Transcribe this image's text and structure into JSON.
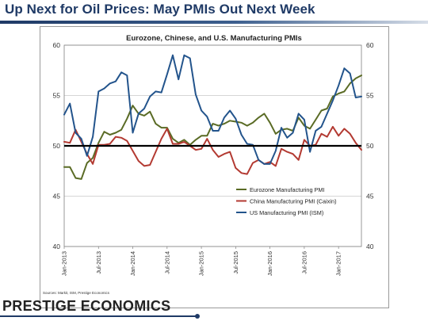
{
  "slide": {
    "title": "Up Next for Oil Prices: May PMIs Out Next Week",
    "sources": "Sources: Markit, ISM, Prestige Economics",
    "brand": "PRESTIGE ECONOMICS"
  },
  "chart_data": {
    "type": "line",
    "title": "Eurozone, Chinese, and U.S. Manufacturing PMIs",
    "xlabel": "",
    "ylabel": "",
    "ylim": [
      40,
      60
    ],
    "yticks": [
      40,
      45,
      50,
      55,
      60
    ],
    "y_tick_labels": [
      "40",
      "45",
      "50",
      "55",
      "60"
    ],
    "secondary_yticks": [
      40,
      45,
      50,
      55,
      60
    ],
    "secondary_y_tick_labels": [
      "40",
      "45",
      "50",
      "55",
      "60"
    ],
    "x": [
      "2013-01",
      "2013-02",
      "2013-03",
      "2013-04",
      "2013-05",
      "2013-06",
      "2013-07",
      "2013-08",
      "2013-09",
      "2013-10",
      "2013-11",
      "2013-12",
      "2014-01",
      "2014-02",
      "2014-03",
      "2014-04",
      "2014-05",
      "2014-06",
      "2014-07",
      "2014-08",
      "2014-09",
      "2014-10",
      "2014-11",
      "2014-12",
      "2015-01",
      "2015-02",
      "2015-03",
      "2015-04",
      "2015-05",
      "2015-06",
      "2015-07",
      "2015-08",
      "2015-09",
      "2015-10",
      "2015-11",
      "2015-12",
      "2016-01",
      "2016-02",
      "2016-03",
      "2016-04",
      "2016-05",
      "2016-06",
      "2016-07",
      "2016-08",
      "2016-09",
      "2016-10",
      "2016-11",
      "2016-12",
      "2017-01",
      "2017-02",
      "2017-03",
      "2017-04",
      "2017-05"
    ],
    "x_tick_labels": [
      "Jan-2013",
      "Jul-2013",
      "Jan-2014",
      "Jul-2014",
      "Jan-2015",
      "Jul-2015",
      "Jan-2016",
      "Jul-2016",
      "Jan-2017"
    ],
    "x_tick_index": [
      0,
      6,
      12,
      18,
      24,
      30,
      36,
      42,
      48
    ],
    "reference_line": 50,
    "grid": "horizontal",
    "legend_position": "bottom-right",
    "series": [
      {
        "name": "Eurozone Manufacturing PMI",
        "color": "#5a6b25",
        "values": [
          47.9,
          47.9,
          46.8,
          46.7,
          48.3,
          48.8,
          50.3,
          51.4,
          51.1,
          51.3,
          51.6,
          52.7,
          54.0,
          53.2,
          53.0,
          53.4,
          52.2,
          51.8,
          51.8,
          50.7,
          50.3,
          50.6,
          50.1,
          50.6,
          51.0,
          51.0,
          52.2,
          52.0,
          52.2,
          52.5,
          52.4,
          52.3,
          52.0,
          52.3,
          52.8,
          53.2,
          52.3,
          51.2,
          51.6,
          51.7,
          51.5,
          52.8,
          52.0,
          51.7,
          52.6,
          53.5,
          53.7,
          54.9,
          55.2,
          55.4,
          56.2,
          56.7,
          57.0
        ]
      },
      {
        "name": "China Manufacturing PMI (Caixin)",
        "color": "#b33a32",
        "values": [
          50.4,
          50.3,
          51.6,
          50.4,
          49.2,
          48.2,
          50.1,
          50.1,
          50.2,
          50.9,
          50.8,
          50.5,
          49.5,
          48.5,
          48.0,
          48.1,
          49.4,
          50.7,
          51.7,
          50.2,
          50.2,
          50.4,
          50.0,
          49.6,
          49.7,
          50.7,
          49.6,
          48.9,
          49.2,
          49.4,
          47.8,
          47.3,
          47.2,
          48.3,
          48.6,
          48.2,
          48.4,
          48.0,
          49.7,
          49.4,
          49.2,
          48.6,
          50.6,
          50.0,
          50.1,
          51.2,
          50.9,
          51.9,
          51.0,
          51.7,
          51.2,
          50.3,
          49.6
        ]
      },
      {
        "name": "US Manufacturing PMI (ISM)",
        "color": "#23548c",
        "values": [
          53.1,
          54.2,
          51.3,
          50.7,
          49.0,
          50.9,
          55.4,
          55.7,
          56.2,
          56.4,
          57.3,
          57.0,
          51.3,
          53.2,
          53.7,
          54.9,
          55.4,
          55.3,
          57.1,
          59.0,
          56.6,
          59.0,
          58.7,
          55.1,
          53.5,
          52.9,
          51.5,
          51.5,
          52.8,
          53.5,
          52.7,
          51.1,
          50.2,
          50.1,
          48.6,
          48.2,
          48.2,
          49.5,
          51.8,
          50.8,
          51.3,
          53.2,
          52.6,
          49.4,
          51.5,
          51.9,
          53.2,
          54.5,
          56.0,
          57.7,
          57.2,
          54.8,
          54.9
        ]
      }
    ]
  }
}
